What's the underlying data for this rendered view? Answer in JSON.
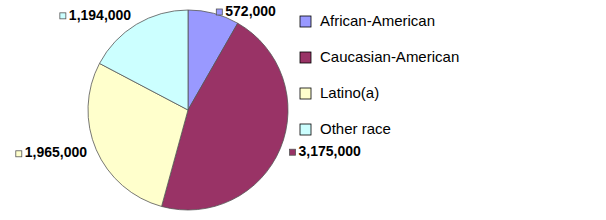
{
  "chart_data": {
    "type": "pie",
    "categories": [
      "African-American",
      "Caucasian-American",
      "Latino(a)",
      "Other race"
    ],
    "values": [
      572000,
      3175000,
      1965000,
      1194000
    ],
    "value_labels": [
      "572,000",
      "3,175,000",
      "1,965,000",
      "1,194,000"
    ],
    "colors": [
      "#9999ff",
      "#993366",
      "#ffffcc",
      "#ccffff"
    ],
    "data_labels": true,
    "legend": "right"
  }
}
